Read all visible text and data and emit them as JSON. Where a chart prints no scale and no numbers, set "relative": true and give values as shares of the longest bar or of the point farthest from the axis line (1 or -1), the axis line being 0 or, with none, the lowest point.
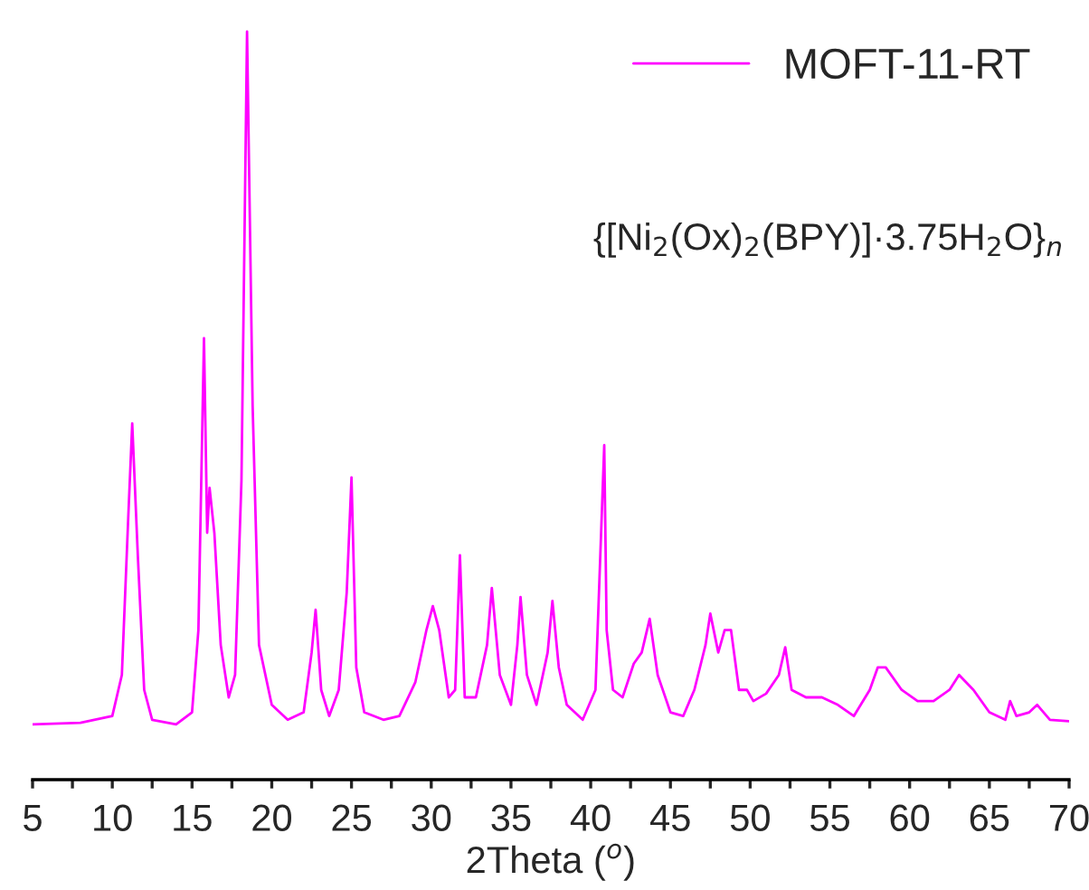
{
  "chart_data": {
    "type": "line",
    "relative": true,
    "xlabel": "2Theta ($^{o}$)",
    "x": [
      5,
      8,
      10,
      10.6,
      11.0,
      11.25,
      11.6,
      12.0,
      12.5,
      14.0,
      15.0,
      15.4,
      15.75,
      15.95,
      16.1,
      16.4,
      16.8,
      17.3,
      17.7,
      18.1,
      18.45,
      18.8,
      19.2,
      20,
      21,
      22,
      22.5,
      22.75,
      23.1,
      23.6,
      24.2,
      24.7,
      25.0,
      25.3,
      25.8,
      27,
      28,
      29,
      29.7,
      30.1,
      30.5,
      31.1,
      31.5,
      31.8,
      32.1,
      32.8,
      33.5,
      33.8,
      34.3,
      35.0,
      35.4,
      35.6,
      36.0,
      36.6,
      37.3,
      37.6,
      38.0,
      38.5,
      39.5,
      40.3,
      40.85,
      41.0,
      41.4,
      42.0,
      42.7,
      43.2,
      43.7,
      44.2,
      45,
      45.8,
      46.5,
      47.2,
      47.5,
      48.0,
      48.4,
      48.8,
      49.3,
      49.8,
      50.2,
      51,
      51.8,
      52.2,
      52.6,
      53.5,
      54.5,
      55.5,
      56.5,
      57.5,
      58.0,
      58.5,
      59.5,
      60.5,
      61.5,
      62.5,
      63.1,
      64,
      65,
      66,
      66.3,
      66.7,
      67.5,
      68,
      68.8,
      70
    ],
    "series": [
      {
        "name": "MOFT-11-RT",
        "color": "#ff00ff",
        "values": [
          0.074,
          0.076,
          0.085,
          0.14,
          0.35,
          0.476,
          0.3,
          0.12,
          0.08,
          0.074,
          0.09,
          0.2,
          0.59,
          0.33,
          0.39,
          0.33,
          0.18,
          0.11,
          0.14,
          0.4,
          1.0,
          0.5,
          0.18,
          0.1,
          0.08,
          0.09,
          0.17,
          0.227,
          0.12,
          0.085,
          0.12,
          0.25,
          0.404,
          0.15,
          0.09,
          0.08,
          0.085,
          0.13,
          0.2,
          0.232,
          0.2,
          0.11,
          0.12,
          0.3,
          0.11,
          0.11,
          0.18,
          0.256,
          0.14,
          0.1,
          0.18,
          0.244,
          0.14,
          0.1,
          0.17,
          0.239,
          0.15,
          0.1,
          0.08,
          0.12,
          0.447,
          0.2,
          0.12,
          0.11,
          0.155,
          0.17,
          0.215,
          0.14,
          0.09,
          0.085,
          0.12,
          0.18,
          0.222,
          0.17,
          0.2,
          0.2,
          0.12,
          0.12,
          0.105,
          0.115,
          0.14,
          0.177,
          0.12,
          0.11,
          0.11,
          0.1,
          0.085,
          0.12,
          0.15,
          0.15,
          0.12,
          0.105,
          0.105,
          0.12,
          0.14,
          0.12,
          0.09,
          0.08,
          0.105,
          0.085,
          0.09,
          0.1,
          0.08,
          0.078
        ]
      }
    ],
    "xlim": [
      5,
      70
    ],
    "xticks": [
      5,
      {
        "value": 7.5,
        "label": null
      },
      10,
      {
        "value": 12.5,
        "label": null
      },
      15,
      {
        "value": 17.5,
        "label": null
      },
      20,
      {
        "value": 22.5,
        "label": null
      },
      25,
      {
        "value": 27.5,
        "label": null
      },
      30,
      {
        "value": 32.5,
        "label": null
      },
      35,
      {
        "value": 37.5,
        "label": null
      },
      40,
      {
        "value": 42.5,
        "label": null
      },
      45,
      {
        "value": 47.5,
        "label": null
      },
      50,
      {
        "value": 52.5,
        "label": null
      },
      55,
      {
        "value": 57.5,
        "label": null
      },
      60,
      {
        "value": 62.5,
        "label": null
      },
      65,
      {
        "value": 67.5,
        "label": null
      },
      70
    ],
    "annotations": [
      "{[Ni$_{2}$(Ox)$_{2}$(BPY)]·3.75H$_{2}$O}$_{n}$"
    ],
    "legend": "top right",
    "grid": false,
    "line_style": "solid",
    "marker": "none"
  }
}
